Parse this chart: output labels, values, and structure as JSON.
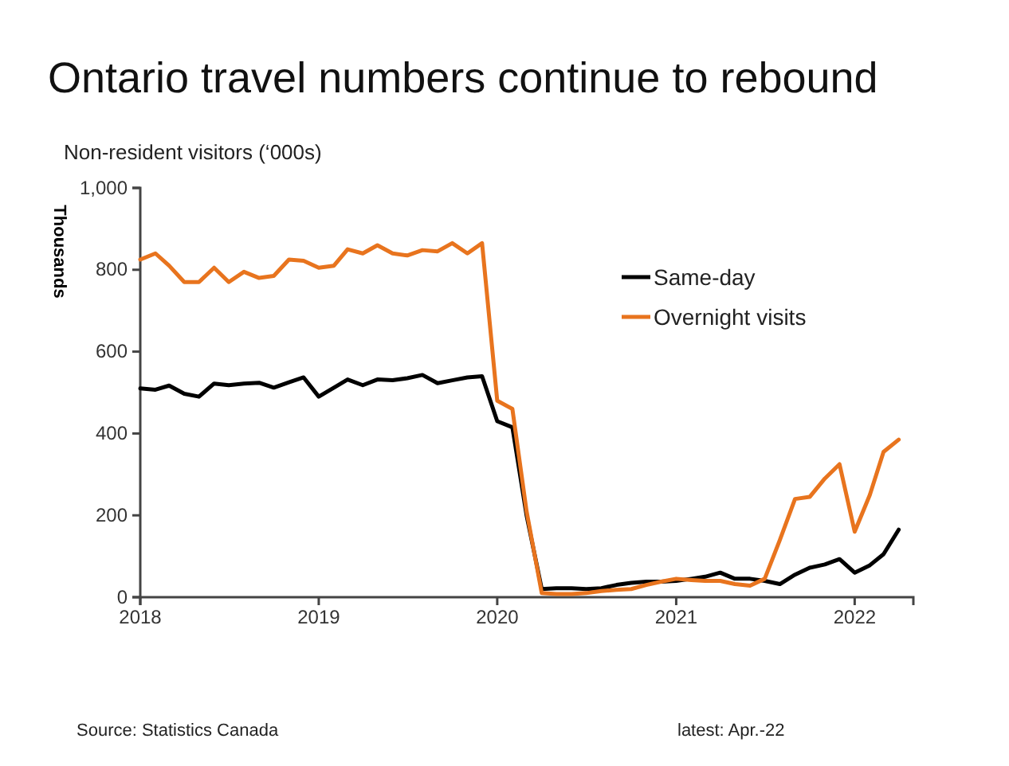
{
  "chart_data": {
    "type": "line",
    "title": "Ontario travel numbers continue to rebound",
    "subtitle": "Non-resident visitors (‘000s)",
    "ylabel": "Thousands",
    "x": [
      "2018-01",
      "2018-02",
      "2018-03",
      "2018-04",
      "2018-05",
      "2018-06",
      "2018-07",
      "2018-08",
      "2018-09",
      "2018-10",
      "2018-11",
      "2018-12",
      "2019-01",
      "2019-02",
      "2019-03",
      "2019-04",
      "2019-05",
      "2019-06",
      "2019-07",
      "2019-08",
      "2019-09",
      "2019-10",
      "2019-11",
      "2019-12",
      "2020-01",
      "2020-02",
      "2020-03",
      "2020-04",
      "2020-05",
      "2020-06",
      "2020-07",
      "2020-08",
      "2020-09",
      "2020-10",
      "2020-11",
      "2020-12",
      "2021-01",
      "2021-02",
      "2021-03",
      "2021-04",
      "2021-05",
      "2021-06",
      "2021-07",
      "2021-08",
      "2021-09",
      "2021-10",
      "2021-11",
      "2021-12",
      "2022-01",
      "2022-02",
      "2022-03",
      "2022-04"
    ],
    "series": [
      {
        "name": "Same-day",
        "color": "#000000",
        "values": [
          510,
          507,
          517,
          497,
          490,
          522,
          518,
          522,
          524,
          512,
          525,
          537,
          490,
          512,
          532,
          518,
          532,
          530,
          535,
          543,
          523,
          530,
          537,
          540,
          430,
          415,
          200,
          20,
          22,
          22,
          20,
          22,
          30,
          35,
          38,
          38,
          40,
          45,
          50,
          60,
          45,
          45,
          40,
          32,
          55,
          72,
          80,
          93,
          60,
          78,
          105,
          165
        ]
      },
      {
        "name": "Overnight visits",
        "color": "#e8741e",
        "values": [
          825,
          840,
          810,
          770,
          770,
          805,
          770,
          795,
          780,
          785,
          825,
          822,
          805,
          810,
          850,
          840,
          860,
          840,
          835,
          848,
          845,
          865,
          840,
          865,
          480,
          460,
          210,
          10,
          8,
          8,
          10,
          15,
          18,
          20,
          30,
          38,
          45,
          42,
          40,
          40,
          32,
          28,
          45,
          140,
          240,
          245,
          290,
          325,
          160,
          250,
          355,
          385
        ]
      }
    ],
    "xlim": [
      "2018-01",
      "2022-05"
    ],
    "xticks": [
      {
        "value": "2018-01",
        "label": "2018"
      },
      {
        "value": "2019-01",
        "label": "2019"
      },
      {
        "value": "2020-01",
        "label": "2020"
      },
      {
        "value": "2021-01",
        "label": "2021"
      },
      {
        "value": "2022-01",
        "label": "2022"
      }
    ],
    "ylim": [
      0,
      1000
    ],
    "yticks": [
      0,
      200,
      400,
      600,
      {
        "value": 800,
        "label": "800"
      },
      {
        "value": 1000,
        "label": "1,000"
      }
    ],
    "grid": false,
    "legend": "top right",
    "line_style": "solid",
    "marker": "none",
    "annotations": [
      "Source: Statistics Canada",
      "latest: Apr.-22"
    ]
  }
}
